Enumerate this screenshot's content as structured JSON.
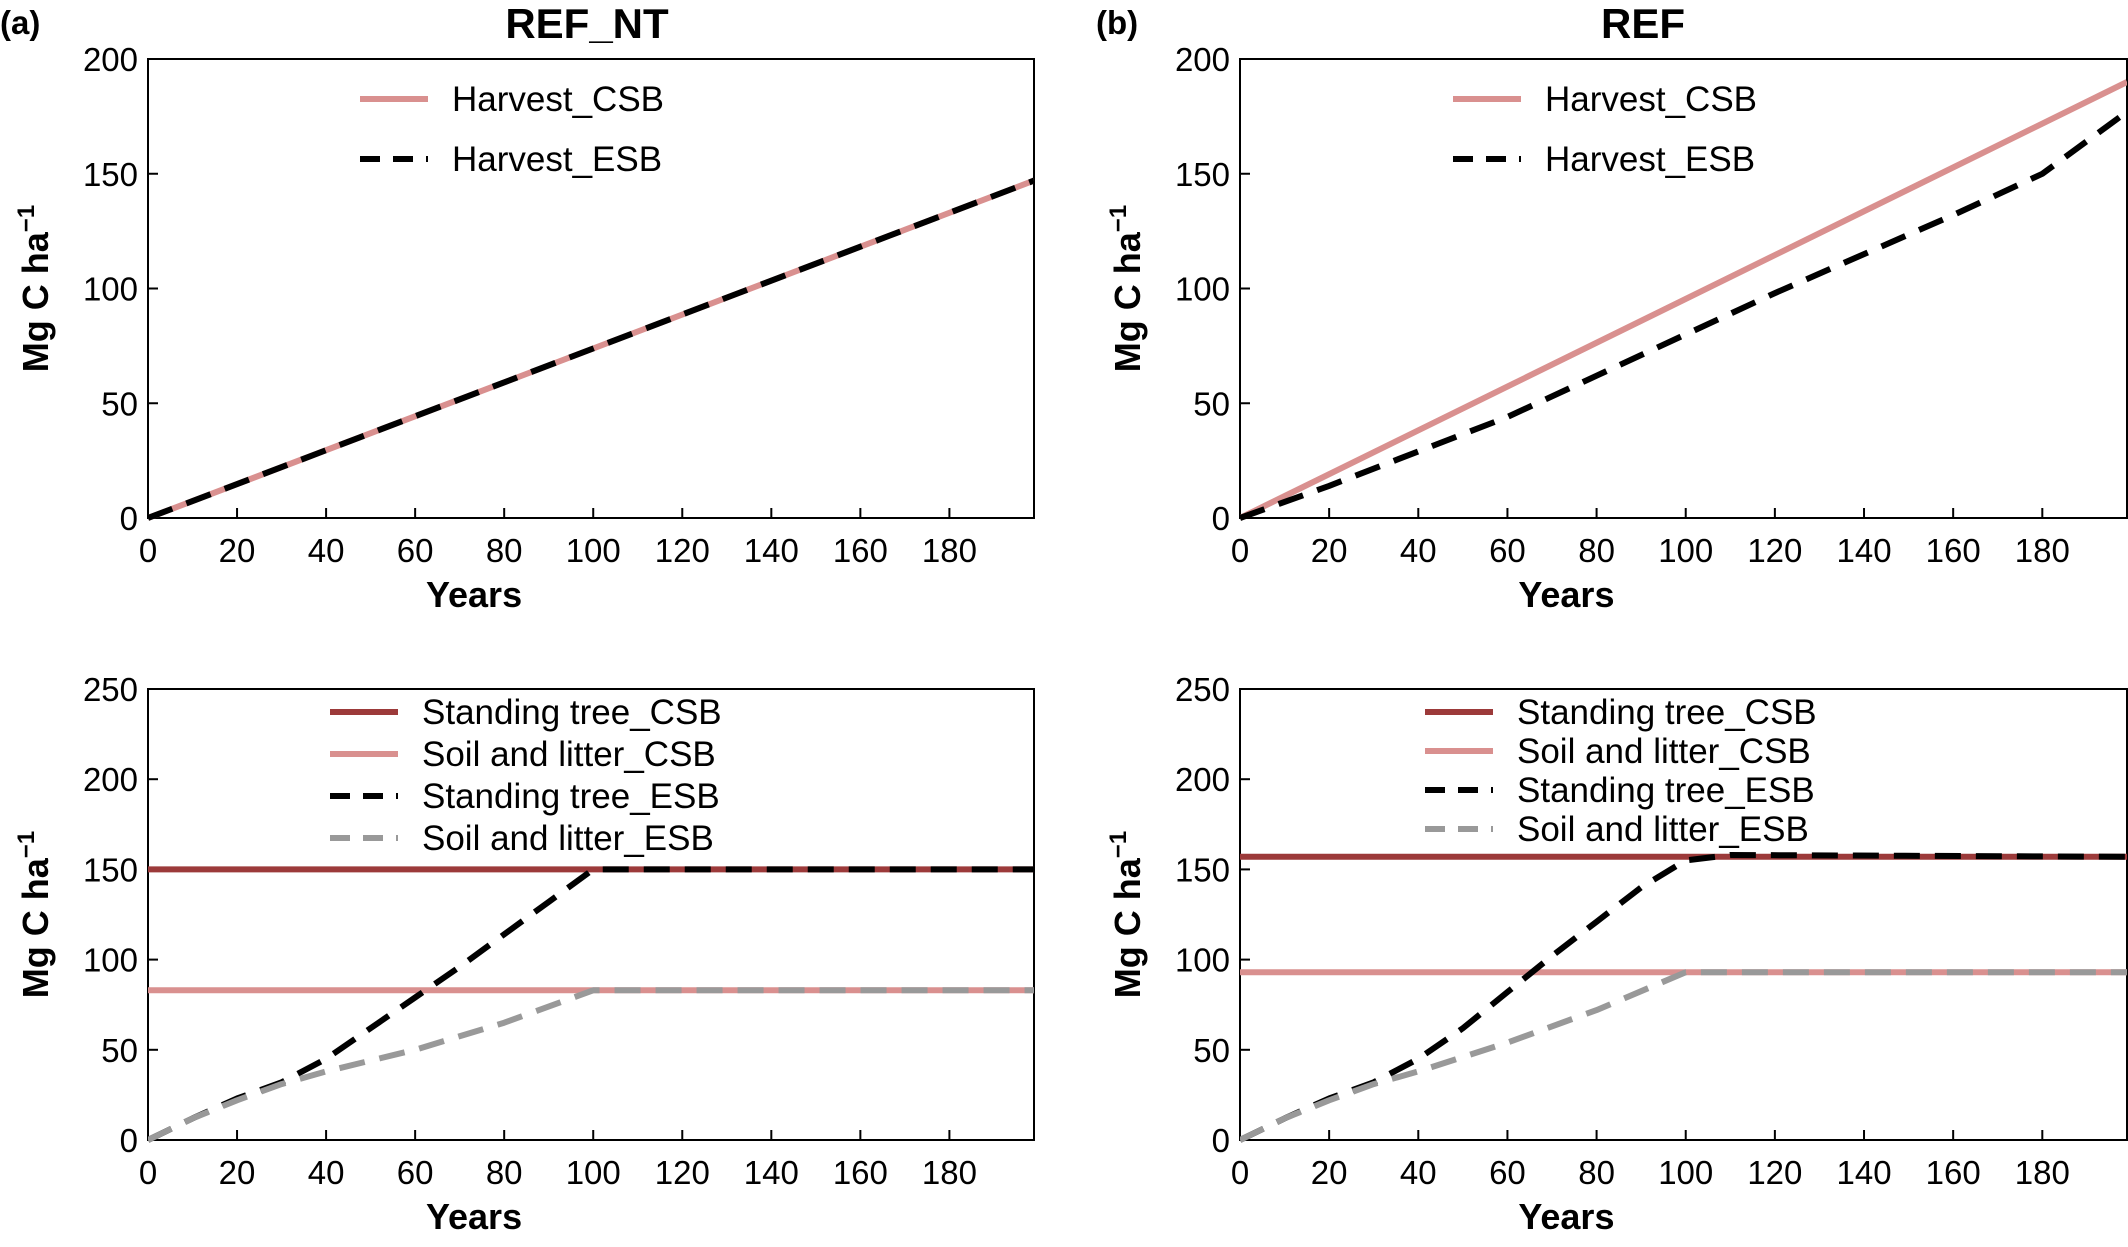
{
  "figure": {
    "panel_tags": [
      "(a)",
      "(b)"
    ],
    "column_titles": [
      "REF_NT",
      "REF"
    ]
  },
  "chart_data": [
    {
      "type": "line",
      "panel": "a-top",
      "xlabel": "Years",
      "ylabel": "Mg C ha",
      "ylabel_superscript": "−1",
      "xlim": [
        0,
        199
      ],
      "ylim": [
        0,
        200
      ],
      "xticks": [
        0,
        20,
        40,
        60,
        80,
        100,
        120,
        140,
        160,
        180
      ],
      "yticks": [
        0,
        50,
        100,
        150,
        200
      ],
      "legend_position": "top-center",
      "grid": false,
      "series": [
        {
          "name": "Harvest_CSB",
          "color": "#d9908f",
          "dash": "solid",
          "x": [
            0,
            199
          ],
          "y": [
            0,
            147
          ]
        },
        {
          "name": "Harvest_ESB",
          "color": "#000000",
          "dash": "dashed",
          "x": [
            0,
            199
          ],
          "y": [
            0,
            147
          ]
        }
      ]
    },
    {
      "type": "line",
      "panel": "b-top",
      "xlabel": "Years",
      "ylabel": "Mg C ha",
      "ylabel_superscript": "−1",
      "xlim": [
        0,
        199
      ],
      "ylim": [
        0,
        200
      ],
      "xticks": [
        0,
        20,
        40,
        60,
        80,
        100,
        120,
        140,
        160,
        180
      ],
      "yticks": [
        0,
        50,
        100,
        150,
        200
      ],
      "legend_position": "top-center",
      "grid": false,
      "series": [
        {
          "name": "Harvest_CSB",
          "color": "#d9908f",
          "dash": "solid",
          "x": [
            0,
            199
          ],
          "y": [
            0,
            190
          ]
        },
        {
          "name": "Harvest_ESB",
          "color": "#000000",
          "dash": "dashed",
          "x": [
            0,
            20,
            40,
            60,
            80,
            100,
            120,
            140,
            160,
            180,
            199
          ],
          "y": [
            0,
            14,
            29,
            44,
            62,
            80,
            98,
            115,
            132,
            150,
            177
          ]
        }
      ]
    },
    {
      "type": "line",
      "panel": "a-bottom",
      "xlabel": "Years",
      "ylabel": "Mg C ha",
      "ylabel_superscript": "−1",
      "xlim": [
        0,
        199
      ],
      "ylim": [
        0,
        250
      ],
      "xticks": [
        0,
        20,
        40,
        60,
        80,
        100,
        120,
        140,
        160,
        180
      ],
      "yticks": [
        0,
        50,
        100,
        150,
        200,
        250
      ],
      "legend_position": "top-center",
      "grid": false,
      "series": [
        {
          "name": "Standing tree_CSB",
          "color": "#9c3a3a",
          "dash": "solid",
          "x": [
            0,
            199
          ],
          "y": [
            150,
            150
          ]
        },
        {
          "name": "Soil and litter_CSB",
          "color": "#d9908f",
          "dash": "solid",
          "x": [
            0,
            199
          ],
          "y": [
            83,
            83
          ]
        },
        {
          "name": "Standing tree_ESB",
          "color": "#000000",
          "dash": "dashed",
          "x": [
            0,
            10,
            20,
            30,
            40,
            50,
            60,
            70,
            80,
            90,
            100,
            199
          ],
          "y": [
            0,
            12,
            23,
            32,
            45,
            62,
            79,
            96,
            114,
            132,
            150,
            150
          ]
        },
        {
          "name": "Soil and litter_ESB",
          "color": "#999999",
          "dash": "dashed",
          "x": [
            0,
            10,
            20,
            30,
            40,
            60,
            80,
            100,
            199
          ],
          "y": [
            0,
            12,
            22,
            31,
            38,
            50,
            65,
            83,
            83
          ]
        }
      ]
    },
    {
      "type": "line",
      "panel": "b-bottom",
      "xlabel": "Years",
      "ylabel": "Mg C ha",
      "ylabel_superscript": "−1",
      "xlim": [
        0,
        199
      ],
      "ylim": [
        0,
        250
      ],
      "xticks": [
        0,
        20,
        40,
        60,
        80,
        100,
        120,
        140,
        160,
        180
      ],
      "yticks": [
        0,
        50,
        100,
        150,
        200,
        250
      ],
      "legend_position": "top-center",
      "grid": false,
      "series": [
        {
          "name": "Standing tree_CSB",
          "color": "#9c3a3a",
          "dash": "solid",
          "x": [
            0,
            199
          ],
          "y": [
            157,
            157
          ]
        },
        {
          "name": "Soil and litter_CSB",
          "color": "#d9908f",
          "dash": "solid",
          "x": [
            0,
            199
          ],
          "y": [
            93,
            93
          ]
        },
        {
          "name": "Standing tree_ESB",
          "color": "#000000",
          "dash": "dashed",
          "x": [
            0,
            10,
            20,
            30,
            40,
            50,
            60,
            70,
            80,
            90,
            100,
            110,
            199
          ],
          "y": [
            0,
            12,
            23,
            32,
            45,
            62,
            82,
            102,
            121,
            140,
            155,
            158,
            157
          ]
        },
        {
          "name": "Soil and litter_ESB",
          "color": "#999999",
          "dash": "dashed",
          "x": [
            0,
            10,
            20,
            30,
            40,
            60,
            80,
            100,
            199
          ],
          "y": [
            0,
            12,
            22,
            31,
            38,
            54,
            72,
            93,
            93
          ]
        }
      ]
    }
  ]
}
